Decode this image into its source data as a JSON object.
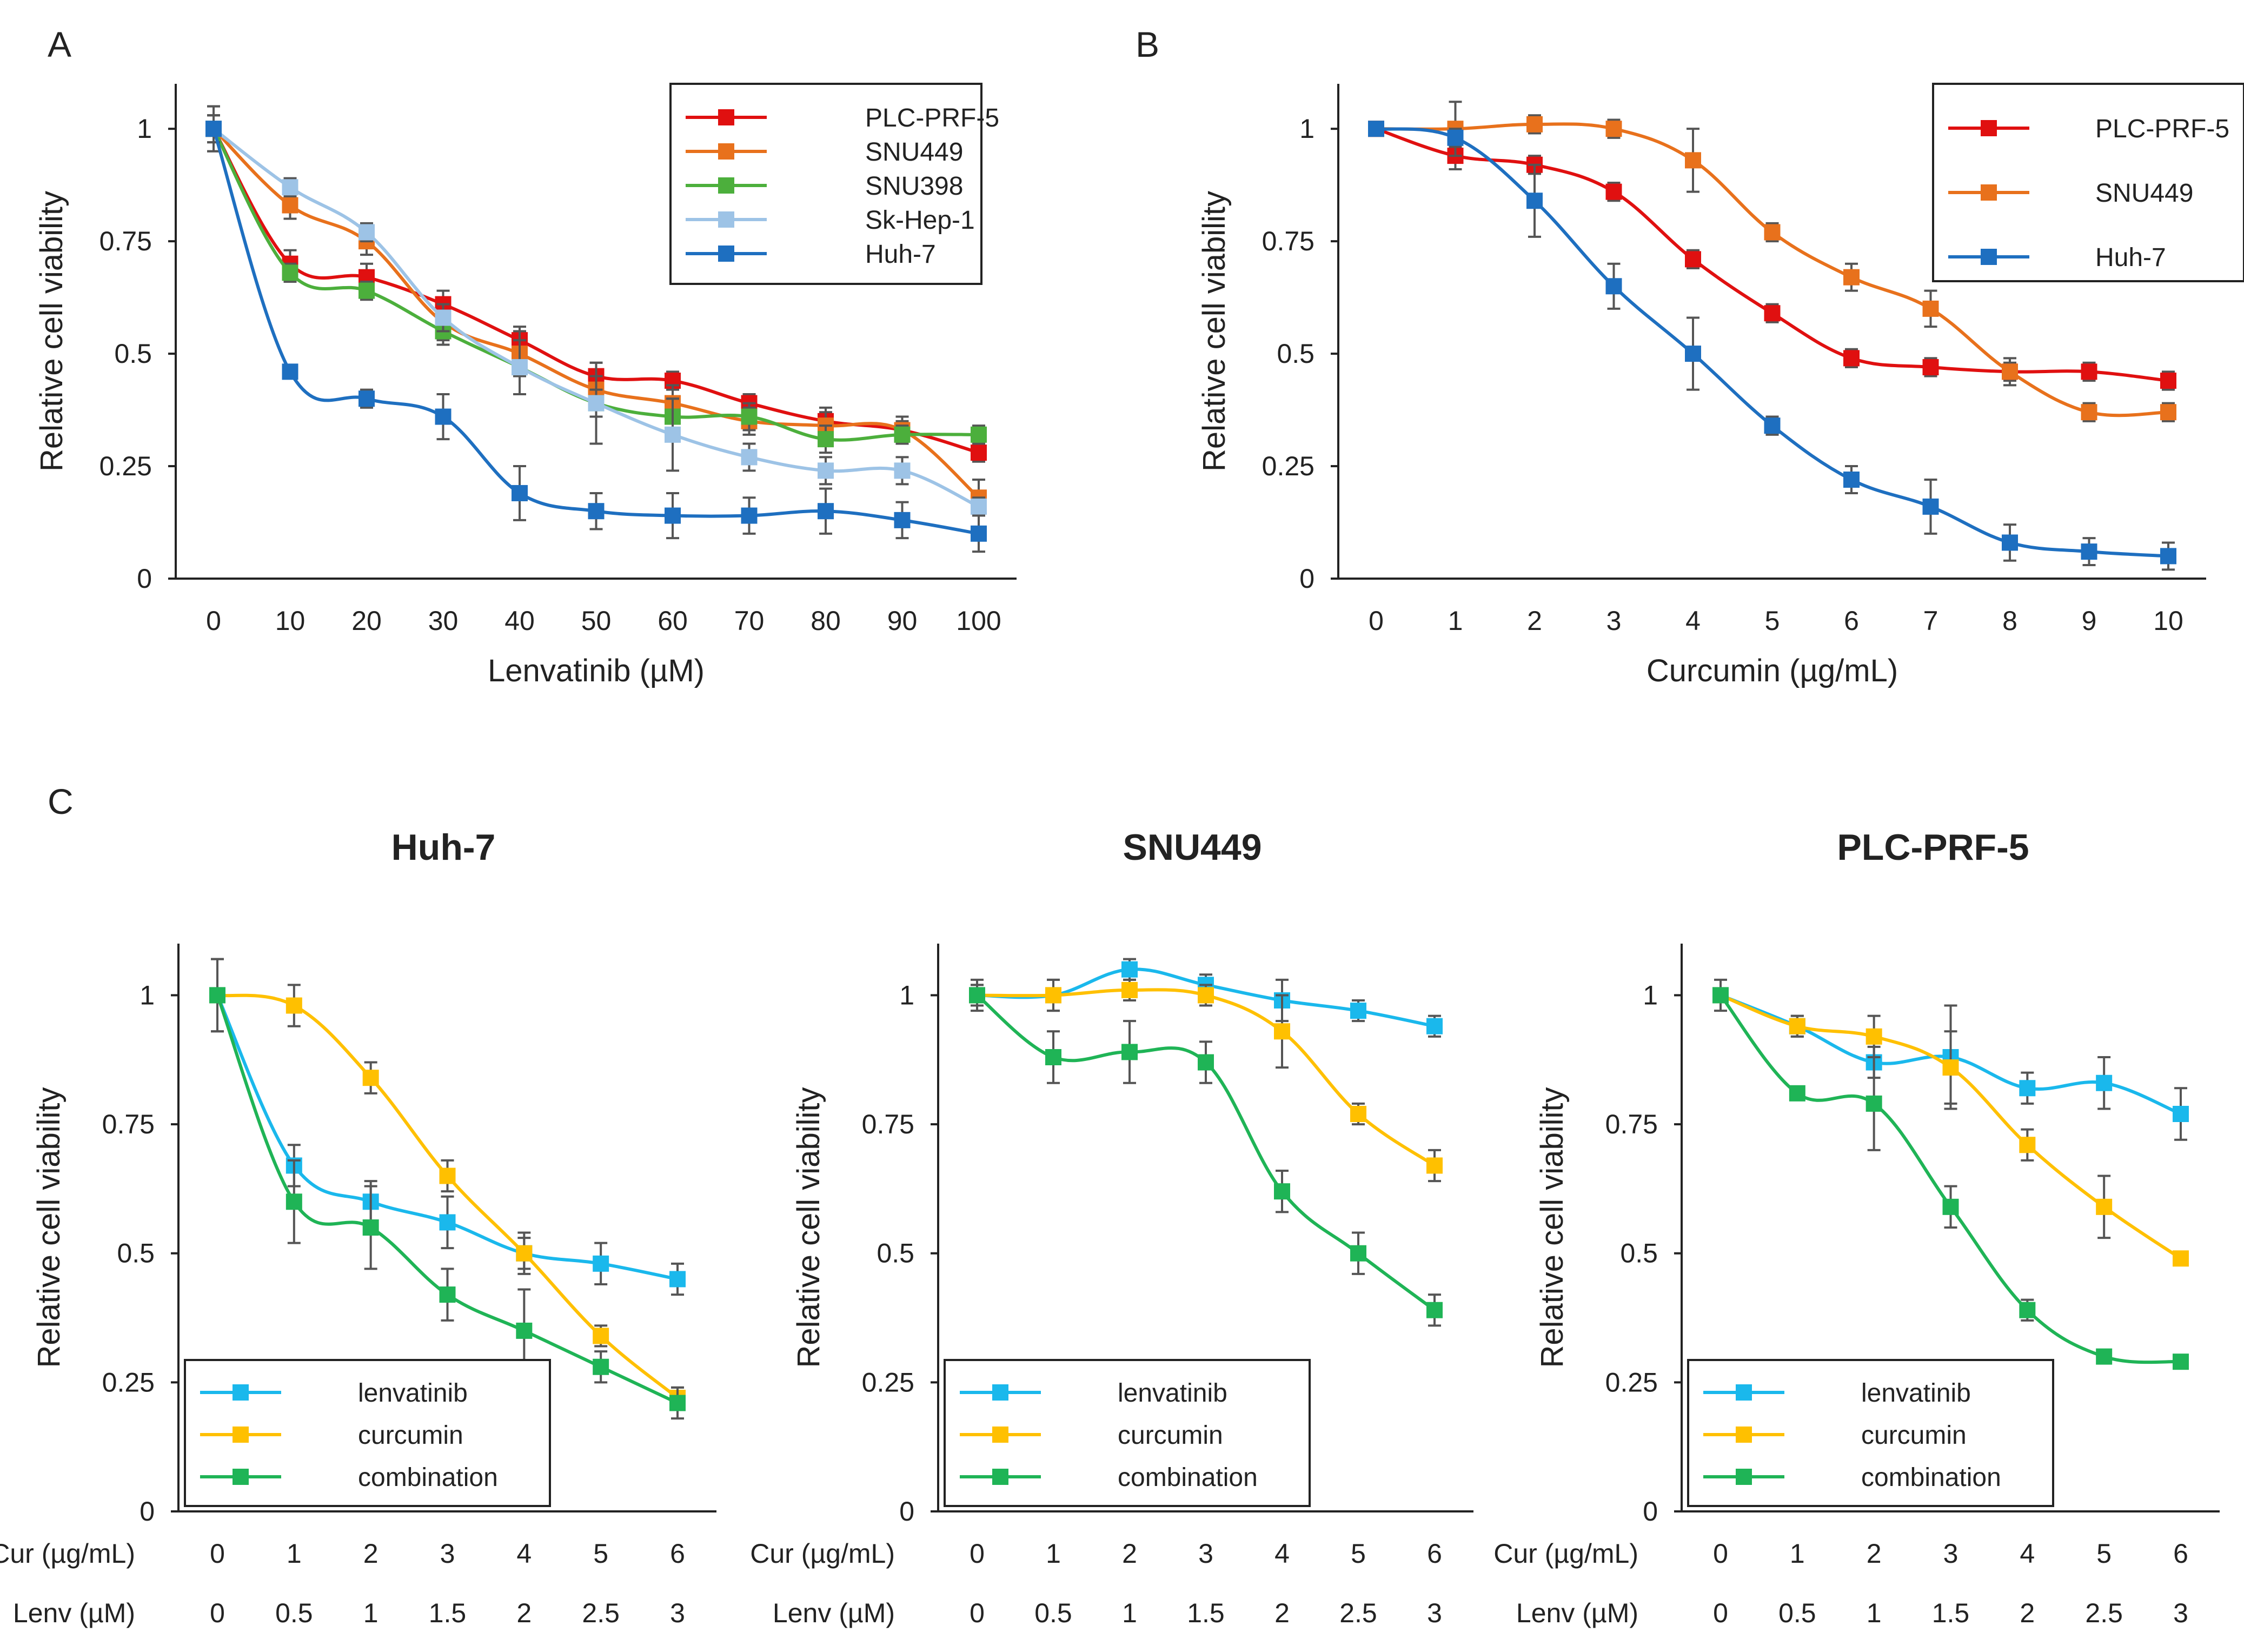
{
  "panels": {
    "A": {
      "letter": "A",
      "chart_data": {
        "type": "line",
        "title": "",
        "xlabel": "Lenvatinib  (µM)",
        "ylabel": "Relative cell viability",
        "categories": [
          "0",
          "10",
          "20",
          "30",
          "40",
          "50",
          "60",
          "70",
          "80",
          "90",
          "100"
        ],
        "ylim": [
          0,
          1.1
        ],
        "yticks": [
          "0",
          "0.25",
          "0.5",
          "0.75",
          "1"
        ],
        "legend_position": "top-right",
        "series": [
          {
            "name": "PLC-PRF-5",
            "color": "#e01010",
            "values": [
              1.0,
              0.7,
              0.67,
              0.61,
              0.53,
              0.45,
              0.44,
              0.39,
              0.35,
              0.33,
              0.28
            ],
            "errors": [
              0.03,
              0.03,
              0.03,
              0.03,
              0.03,
              0.03,
              0.02,
              0.02,
              0.02,
              0.02,
              0.02
            ]
          },
          {
            "name": "SNU449",
            "color": "#e8711c",
            "values": [
              1.0,
              0.83,
              0.75,
              0.57,
              0.5,
              0.42,
              0.39,
              0.35,
              0.34,
              0.33,
              0.18
            ],
            "errors": [
              0.05,
              0.03,
              0.03,
              0.04,
              0.05,
              0.03,
              0.04,
              0.03,
              0.04,
              0.03,
              0.04
            ]
          },
          {
            "name": "SNU398",
            "color": "#4caf3c",
            "values": [
              1.0,
              0.68,
              0.64,
              0.55,
              0.47,
              0.39,
              0.36,
              0.36,
              0.31,
              0.32,
              0.32
            ],
            "errors": [
              0.03,
              0.02,
              0.02,
              0.03,
              0.06,
              0.09,
              0.04,
              0.03,
              0.03,
              0.02,
              0.02
            ]
          },
          {
            "name": "Sk-Hep-1",
            "color": "#9dc3e6",
            "values": [
              1.0,
              0.87,
              0.77,
              0.58,
              0.47,
              0.39,
              0.32,
              0.27,
              0.24,
              0.24,
              0.16
            ],
            "errors": [
              0.03,
              0.02,
              0.02,
              0.03,
              0.06,
              0.03,
              0.08,
              0.03,
              0.03,
              0.03,
              0.02
            ]
          },
          {
            "name": "Huh-7",
            "color": "#1e6fc0",
            "values": [
              1.0,
              0.46,
              0.4,
              0.36,
              0.19,
              0.15,
              0.14,
              0.14,
              0.15,
              0.13,
              0.1
            ],
            "errors": [
              0.05,
              0.01,
              0.02,
              0.05,
              0.06,
              0.04,
              0.05,
              0.04,
              0.05,
              0.04,
              0.04
            ]
          }
        ]
      }
    },
    "B": {
      "letter": "B",
      "chart_data": {
        "type": "line",
        "title": "",
        "xlabel": "Curcumin  (µg/mL)",
        "ylabel": "Relative cell viability",
        "categories": [
          "0",
          "1",
          "2",
          "3",
          "4",
          "5",
          "6",
          "7",
          "8",
          "9",
          "10"
        ],
        "ylim": [
          0,
          1.1
        ],
        "yticks": [
          "0",
          "0.25",
          "0.5",
          "0.75",
          "1"
        ],
        "legend_position": "top-right",
        "series": [
          {
            "name": "PLC-PRF-5",
            "color": "#e01010",
            "values": [
              1.0,
              0.94,
              0.92,
              0.86,
              0.71,
              0.59,
              0.49,
              0.47,
              0.46,
              0.46,
              0.44
            ],
            "errors": [
              0,
              0.03,
              0.02,
              0.02,
              0.02,
              0.02,
              0.02,
              0.02,
              0.02,
              0.02,
              0.02
            ]
          },
          {
            "name": "SNU449",
            "color": "#e8711c",
            "values": [
              1.0,
              1.0,
              1.01,
              1.0,
              0.93,
              0.77,
              0.67,
              0.6,
              0.46,
              0.37,
              0.37
            ],
            "errors": [
              0,
              0.06,
              0.02,
              0.02,
              0.07,
              0.02,
              0.03,
              0.04,
              0.03,
              0.02,
              0.02
            ]
          },
          {
            "name": "Huh-7",
            "color": "#1e6fc0",
            "values": [
              1.0,
              0.98,
              0.84,
              0.65,
              0.5,
              0.34,
              0.22,
              0.16,
              0.08,
              0.06,
              0.05
            ],
            "errors": [
              0,
              0.02,
              0.08,
              0.05,
              0.08,
              0.02,
              0.03,
              0.06,
              0.04,
              0.03,
              0.03
            ]
          }
        ]
      }
    },
    "C": {
      "letter": "C",
      "row_label_1": "Cur (µg/mL)",
      "row_label_2": "Lenv (µM)",
      "chart_data": [
        {
          "type": "line",
          "title": "Huh-7",
          "ylabel": "Relative cell viability",
          "categories": [
            "0",
            "1",
            "2",
            "3",
            "4",
            "5",
            "6"
          ],
          "categories_2": [
            "0",
            "0.5",
            "1",
            "1.5",
            "2",
            "2.5",
            "3"
          ],
          "ylim": [
            0,
            1.1
          ],
          "yticks": [
            "0",
            "0.25",
            "0.5",
            "0.75",
            "1"
          ],
          "legend_position": "bottom-left",
          "series": [
            {
              "name": "lenvatinib",
              "color": "#1ab8ec",
              "values": [
                1.0,
                0.67,
                0.6,
                0.56,
                0.5,
                0.48,
                0.45
              ],
              "errors": [
                0.07,
                0.04,
                0.04,
                0.05,
                0.04,
                0.04,
                0.03
              ]
            },
            {
              "name": "curcumin",
              "color": "#ffc000",
              "values": [
                1.0,
                0.98,
                0.84,
                0.65,
                0.5,
                0.34,
                0.22
              ],
              "errors": [
                0,
                0.04,
                0.03,
                0.03,
                0.03,
                0.02,
                0.02
              ]
            },
            {
              "name": "combination",
              "color": "#1fb456",
              "values": [
                1.0,
                0.6,
                0.55,
                0.42,
                0.35,
                0.28,
                0.21
              ],
              "errors": [
                0.07,
                0.08,
                0.08,
                0.05,
                0.08,
                0.03,
                0.03
              ]
            }
          ]
        },
        {
          "type": "line",
          "title": "SNU449",
          "ylabel": "Relative cell viability",
          "categories": [
            "0",
            "1",
            "2",
            "3",
            "4",
            "5",
            "6"
          ],
          "categories_2": [
            "0",
            "0.5",
            "1",
            "1.5",
            "2",
            "2.5",
            "3"
          ],
          "ylim": [
            0,
            1.1
          ],
          "yticks": [
            "0",
            "0.25",
            "0.5",
            "0.75",
            "1"
          ],
          "legend_position": "bottom-left",
          "series": [
            {
              "name": "lenvatinib",
              "color": "#1ab8ec",
              "values": [
                1.0,
                1.0,
                1.05,
                1.02,
                0.99,
                0.97,
                0.94
              ],
              "errors": [
                0.03,
                0.03,
                0.02,
                0.02,
                0.04,
                0.02,
                0.02
              ]
            },
            {
              "name": "curcumin",
              "color": "#ffc000",
              "values": [
                1.0,
                1.0,
                1.01,
                1.0,
                0.93,
                0.77,
                0.67
              ],
              "errors": [
                0.02,
                0.03,
                0.02,
                0.02,
                0.07,
                0.02,
                0.03
              ]
            },
            {
              "name": "combination",
              "color": "#1fb456",
              "values": [
                1.0,
                0.88,
                0.89,
                0.87,
                0.62,
                0.5,
                0.39
              ],
              "errors": [
                0.02,
                0.05,
                0.06,
                0.04,
                0.04,
                0.04,
                0.03
              ]
            }
          ]
        },
        {
          "type": "line",
          "title": "PLC-PRF-5",
          "ylabel": "Relative cell viability",
          "categories": [
            "0",
            "1",
            "2",
            "3",
            "4",
            "5",
            "6"
          ],
          "categories_2": [
            "0",
            "0.5",
            "1",
            "1.5",
            "2",
            "2.5",
            "3"
          ],
          "ylim": [
            0,
            1.1
          ],
          "yticks": [
            "0",
            "0.25",
            "0.5",
            "0.75",
            "1"
          ],
          "legend_position": "bottom-left",
          "series": [
            {
              "name": "lenvatinib",
              "color": "#1ab8ec",
              "values": [
                1.0,
                0.94,
                0.87,
                0.88,
                0.82,
                0.83,
                0.77
              ],
              "errors": [
                0.03,
                0.02,
                0.03,
                0.1,
                0.03,
                0.05,
                0.05
              ]
            },
            {
              "name": "curcumin",
              "color": "#ffc000",
              "values": [
                1.0,
                0.94,
                0.92,
                0.86,
                0.71,
                0.59,
                0.49
              ],
              "errors": [
                0,
                0.02,
                0.04,
                0.07,
                0.03,
                0.06,
                0.01
              ]
            },
            {
              "name": "combination",
              "color": "#1fb456",
              "values": [
                1.0,
                0.81,
                0.79,
                0.59,
                0.39,
                0.3,
                0.29
              ],
              "errors": [
                0,
                0.01,
                0.09,
                0.04,
                0.02,
                0.01,
                0.01
              ]
            }
          ]
        }
      ]
    }
  }
}
